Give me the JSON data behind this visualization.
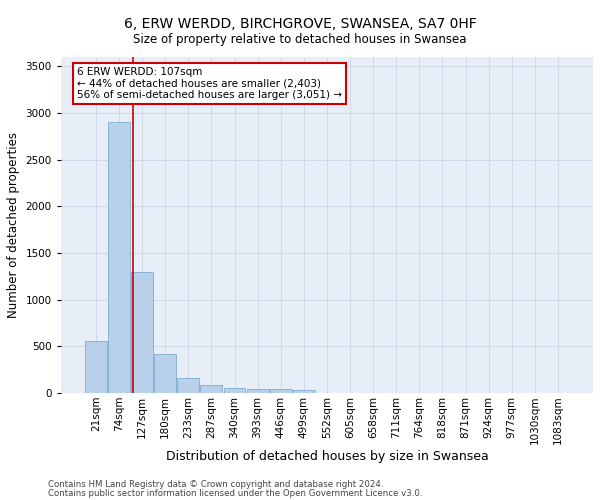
{
  "title": "6, ERW WERDD, BIRCHGROVE, SWANSEA, SA7 0HF",
  "subtitle": "Size of property relative to detached houses in Swansea",
  "xlabel": "Distribution of detached houses by size in Swansea",
  "ylabel": "Number of detached properties",
  "footer_line1": "Contains HM Land Registry data © Crown copyright and database right 2024.",
  "footer_line2": "Contains public sector information licensed under the Open Government Licence v3.0.",
  "bin_labels": [
    "21sqm",
    "74sqm",
    "127sqm",
    "180sqm",
    "233sqm",
    "287sqm",
    "340sqm",
    "393sqm",
    "446sqm",
    "499sqm",
    "552sqm",
    "605sqm",
    "658sqm",
    "711sqm",
    "764sqm",
    "818sqm",
    "871sqm",
    "924sqm",
    "977sqm",
    "1030sqm",
    "1083sqm"
  ],
  "bar_heights": [
    560,
    2900,
    1300,
    420,
    160,
    85,
    50,
    45,
    40,
    35,
    0,
    0,
    0,
    0,
    0,
    0,
    0,
    0,
    0,
    0,
    0
  ],
  "bar_color": "#b8d0ea",
  "bar_edge_color": "#7aadd4",
  "grid_color": "#d0d8e8",
  "background_color": "#e8eef8",
  "annotation_line1": "6 ERW WERDD: 107sqm",
  "annotation_line2": "← 44% of detached houses are smaller (2,403)",
  "annotation_line3": "56% of semi-detached houses are larger (3,051) →",
  "vline_color": "#cc0000",
  "vline_x": 1.62,
  "ylim": [
    0,
    3600
  ],
  "yticks": [
    0,
    500,
    1000,
    1500,
    2000,
    2500,
    3000,
    3500
  ],
  "title_fontsize": 10,
  "subtitle_fontsize": 8.5,
  "ylabel_fontsize": 8.5,
  "xlabel_fontsize": 9,
  "tick_fontsize": 7.5,
  "footer_fontsize": 6.2
}
